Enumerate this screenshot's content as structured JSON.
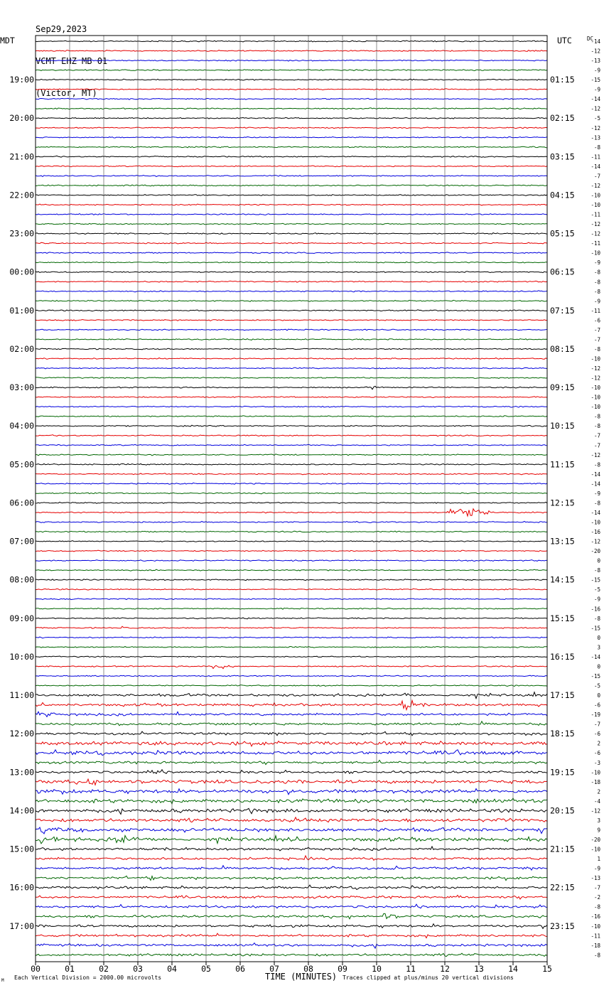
{
  "header": {
    "date": "Sep29,2023",
    "station": "VCMT EHZ MB 01",
    "location": "(Victor, MT)"
  },
  "left_tz": "MDT",
  "right_tz": "UTC",
  "dc_label": "DC",
  "corner_mark": "M",
  "footer": {
    "left": "Each Vertical Division = 2000.00 microvolts",
    "center": "TIME (MINUTES)",
    "right": "Traces clipped at plus/minus 20 vertical divisions"
  },
  "chart_data": {
    "type": "line",
    "title": "",
    "xlabel": "TIME (MINUTES)",
    "xlim": [
      0,
      15
    ],
    "x_ticks": [
      "00",
      "01",
      "02",
      "03",
      "04",
      "05",
      "06",
      "07",
      "08",
      "09",
      "10",
      "11",
      "12",
      "13",
      "14",
      "15"
    ],
    "trace_colors": [
      "#000000",
      "#e60000",
      "#0000dd",
      "#006600"
    ],
    "rows_per_hour": 4,
    "row_count": 96,
    "first_row_time_mdt": "18:15",
    "left_hour_labels": [
      "19:00",
      "20:00",
      "21:00",
      "22:00",
      "23:00",
      "00:00",
      "01:00",
      "02:00",
      "03:00",
      "04:00",
      "05:00",
      "06:00",
      "07:00",
      "08:00",
      "09:00",
      "10:00",
      "11:00",
      "12:00",
      "13:00",
      "14:00",
      "15:00",
      "16:00",
      "17:00"
    ],
    "right_hour_labels": [
      "01:15",
      "02:15",
      "03:15",
      "04:15",
      "05:15",
      "06:15",
      "07:15",
      "08:15",
      "09:15",
      "10:15",
      "11:15",
      "12:15",
      "13:15",
      "14:15",
      "15:15",
      "16:15",
      "17:15",
      "18:15",
      "19:15",
      "20:15",
      "21:15",
      "22:15",
      "23:15"
    ],
    "dc_offsets": [
      -14,
      -12,
      -13,
      -9,
      -15,
      -9,
      -14,
      -12,
      -5,
      -12,
      -13,
      -8,
      -11,
      -14,
      -7,
      -12,
      -10,
      -10,
      -11,
      -12,
      -12,
      -11,
      -10,
      -9,
      -8,
      -8,
      -8,
      -9,
      -11,
      -6,
      -7,
      -7,
      -8,
      -10,
      -12,
      -12,
      -10,
      -10,
      -10,
      -8,
      -8,
      -7,
      -7,
      -12,
      -8,
      -14,
      -14,
      -9,
      -8,
      -14,
      -10,
      -16,
      -12,
      -20,
      0,
      -8,
      -15,
      -5,
      -9,
      -16,
      -8,
      -15,
      0,
      3,
      -14,
      0,
      -15,
      -5,
      0,
      -6,
      -19,
      -7,
      -6,
      2,
      -6,
      -3,
      -10,
      -18,
      2,
      -4,
      -12,
      3,
      9,
      -20,
      -10,
      1,
      -9,
      -13,
      -7,
      -2,
      -8,
      -16,
      -10,
      -11,
      -18,
      -8
    ],
    "noise_level": [
      1,
      1,
      1,
      1,
      1,
      1,
      1,
      1,
      1,
      1,
      1,
      1,
      1,
      1,
      1,
      1,
      1,
      1,
      1,
      1,
      1,
      1,
      1,
      1,
      1,
      1,
      1,
      1,
      1,
      1,
      1,
      1,
      1,
      1,
      1,
      1,
      1,
      1,
      1,
      1,
      1,
      1,
      1,
      1,
      1,
      1,
      1,
      1,
      1,
      1,
      1,
      1,
      1,
      1,
      1,
      1,
      1,
      1,
      1,
      1,
      1,
      1,
      1,
      1,
      1,
      1,
      1,
      1,
      2,
      2,
      2,
      2,
      2,
      3,
      3,
      2,
      2,
      3,
      3,
      3,
      3,
      3,
      3,
      3,
      2,
      2,
      2,
      2,
      2,
      2,
      2,
      2,
      2,
      2,
      2,
      2
    ],
    "events": [
      {
        "row": 36,
        "minute": 9.9,
        "amp": 5,
        "len": 0.15
      },
      {
        "row": 49,
        "minute": 12.1,
        "amp": 10,
        "len": 0.5
      },
      {
        "row": 49,
        "minute": 12.45,
        "amp": 13,
        "len": 0.9
      },
      {
        "row": 61,
        "minute": 2.5,
        "amp": 4,
        "len": 0.3
      },
      {
        "row": 65,
        "minute": 5.2,
        "amp": 6,
        "len": 0.8
      },
      {
        "row": 68,
        "minute": 10.8,
        "amp": 6,
        "len": 0.3
      },
      {
        "row": 69,
        "minute": 10.75,
        "amp": 14,
        "len": 0.7
      },
      {
        "row": 70,
        "minute": 0.1,
        "amp": 7,
        "len": 0.7
      },
      {
        "row": 73,
        "minute": 3.5,
        "amp": 6,
        "len": 0.5
      },
      {
        "row": 74,
        "minute": 12.3,
        "amp": 8,
        "len": 0.5
      },
      {
        "row": 76,
        "minute": 3.3,
        "amp": 8,
        "len": 0.5
      },
      {
        "row": 77,
        "minute": 1.5,
        "amp": 9,
        "len": 0.8
      },
      {
        "row": 78,
        "minute": 0.8,
        "amp": 8,
        "len": 0.5
      },
      {
        "row": 79,
        "minute": 12.7,
        "amp": 7,
        "len": 0.8
      },
      {
        "row": 80,
        "minute": 6.2,
        "amp": 7,
        "len": 0.6
      },
      {
        "row": 82,
        "minute": 0.1,
        "amp": 10,
        "len": 0.9
      },
      {
        "row": 82,
        "minute": 14.8,
        "amp": 9,
        "len": 0.2
      },
      {
        "row": 83,
        "minute": 0.1,
        "amp": 10,
        "len": 1.0
      },
      {
        "row": 83,
        "minute": 2.3,
        "amp": 9,
        "len": 1.3
      },
      {
        "row": 85,
        "minute": 7.9,
        "amp": 7,
        "len": 0.4
      },
      {
        "row": 86,
        "minute": 8.6,
        "amp": 5,
        "len": 0.4
      },
      {
        "row": 86,
        "minute": 10.4,
        "amp": 5,
        "len": 0.5
      },
      {
        "row": 87,
        "minute": 3.4,
        "amp": 5,
        "len": 0.7
      },
      {
        "row": 87,
        "minute": 4.6,
        "amp": 5,
        "len": 0.3
      },
      {
        "row": 89,
        "minute": 12.2,
        "amp": 6,
        "len": 0.6
      },
      {
        "row": 91,
        "minute": 10.2,
        "amp": 8,
        "len": 0.6
      }
    ]
  }
}
